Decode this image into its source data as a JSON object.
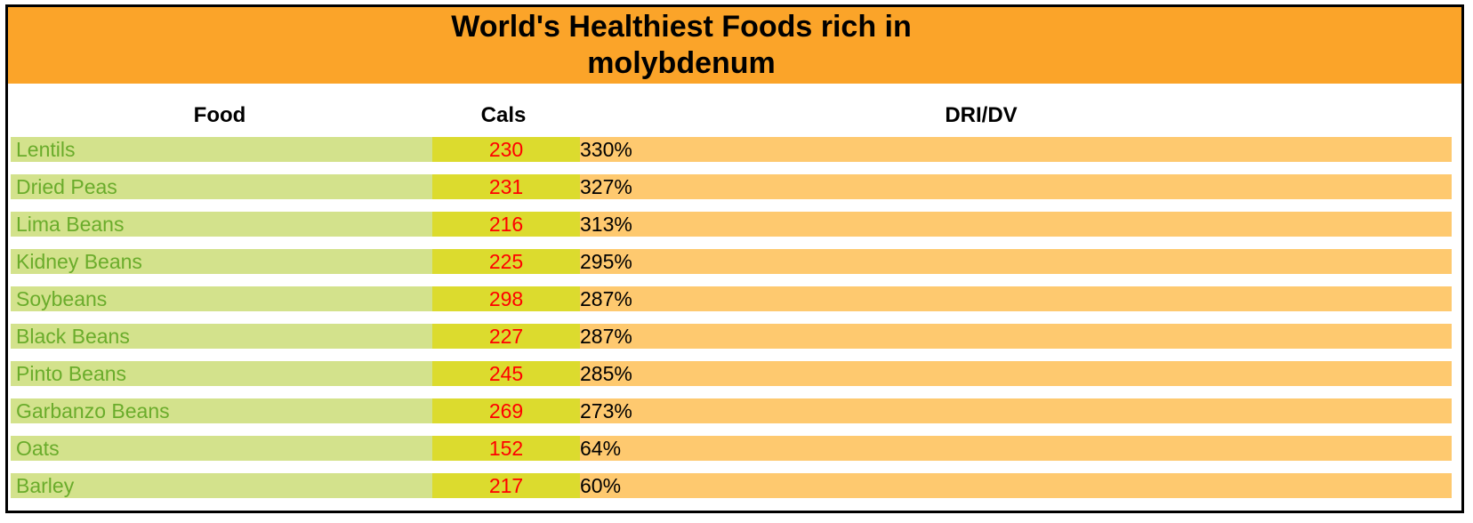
{
  "title": {
    "line1": "World's Healthiest Foods rich in",
    "line2": "molybdenum"
  },
  "headers": {
    "food": "Food",
    "cals": "Cals",
    "dri": "DRI/DV"
  },
  "colors": {
    "title_bg": "#fba429",
    "food_bg": "#d3e28c",
    "food_text": "#6aac2b",
    "cals_bg": "#dcdb2e",
    "cals_text": "#ff0000",
    "dri_bg": "#fec96f"
  },
  "rows": [
    {
      "food": "Lentils",
      "cals": "230",
      "dri": "330%"
    },
    {
      "food": "Dried Peas",
      "cals": "231",
      "dri": "327%"
    },
    {
      "food": "Lima Beans",
      "cals": "216",
      "dri": "313%"
    },
    {
      "food": "Kidney Beans",
      "cals": "225",
      "dri": "295%"
    },
    {
      "food": "Soybeans",
      "cals": "298",
      "dri": "287%"
    },
    {
      "food": "Black Beans",
      "cals": "227",
      "dri": "287%"
    },
    {
      "food": "Pinto Beans",
      "cals": "245",
      "dri": "285%"
    },
    {
      "food": "Garbanzo Beans",
      "cals": "269",
      "dri": "273%"
    },
    {
      "food": "Oats",
      "cals": "152",
      "dri": "64%"
    },
    {
      "food": "Barley",
      "cals": "217",
      "dri": "60%"
    }
  ]
}
